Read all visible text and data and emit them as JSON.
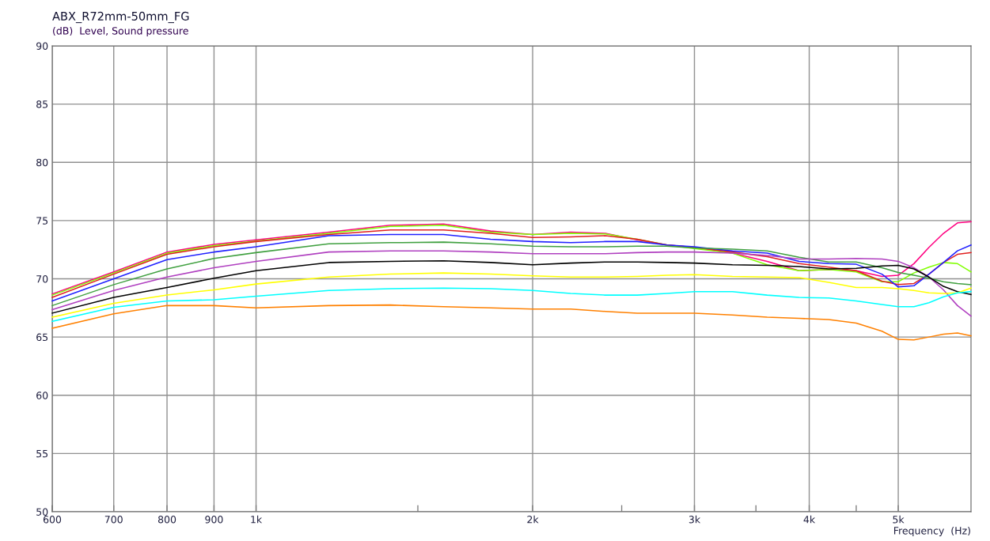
{
  "chart_data": {
    "type": "line",
    "title": "ABX_R72mm-50mm_FG",
    "ylabel": "(dB)  Level, Sound pressure",
    "xlabel": "Frequency  (Hz)",
    "log": "x",
    "grid": true,
    "marker": "none",
    "line_style": "solid",
    "xlim": [
      600,
      6000
    ],
    "ylim": [
      50,
      90
    ],
    "xticks": [
      600,
      700,
      800,
      900,
      {
        "value": 1000,
        "label": "1k"
      },
      {
        "value": 1500,
        "label": null
      },
      {
        "value": 2000,
        "label": "2k"
      },
      {
        "value": 2500,
        "label": null
      },
      {
        "value": 3000,
        "label": "3k"
      },
      {
        "value": 3500,
        "label": null
      },
      {
        "value": 4000,
        "label": "4k"
      },
      {
        "value": 4500,
        "label": null
      },
      {
        "value": 5000,
        "label": "5k"
      }
    ],
    "yticks": [
      50,
      55,
      60,
      65,
      70,
      75,
      80,
      85,
      90
    ],
    "x": [
      600,
      700,
      800,
      900,
      1000,
      1200,
      1400,
      1600,
      1800,
      2000,
      2200,
      2400,
      2600,
      2800,
      3000,
      3300,
      3600,
      3900,
      4200,
      4500,
      4800,
      5000,
      5200,
      5400,
      5600,
      5800,
      6000
    ],
    "series": [
      {
        "color": "#ff0080",
        "values": [
          68.7,
          70.6,
          72.3,
          72.95,
          73.35,
          74.0,
          74.6,
          74.7,
          74.1,
          73.8,
          74.0,
          73.9,
          73.35,
          72.9,
          72.7,
          72.2,
          71.5,
          70.7,
          70.8,
          70.7,
          70.2,
          70.3,
          71.3,
          72.7,
          73.9,
          74.8,
          74.9
        ]
      },
      {
        "color": "#80ff00",
        "values": [
          68.6,
          70.5,
          72.2,
          72.85,
          73.25,
          73.9,
          74.5,
          74.6,
          74.0,
          73.8,
          73.9,
          73.85,
          73.4,
          72.9,
          72.6,
          72.2,
          71.2,
          70.7,
          70.8,
          70.6,
          69.75,
          69.75,
          70.5,
          71.0,
          71.4,
          71.3,
          70.6
        ]
      },
      {
        "color": "#e02020",
        "values": [
          68.4,
          70.4,
          72.1,
          72.75,
          73.2,
          73.8,
          74.2,
          74.2,
          73.9,
          73.55,
          73.6,
          73.7,
          73.4,
          72.9,
          72.7,
          72.3,
          71.9,
          71.3,
          71.0,
          70.7,
          69.8,
          69.5,
          69.6,
          70.4,
          71.4,
          72.1,
          72.25
        ]
      },
      {
        "color": "#2020ff",
        "values": [
          68.1,
          70.0,
          71.65,
          72.3,
          72.75,
          73.7,
          73.8,
          73.8,
          73.4,
          73.2,
          73.1,
          73.2,
          73.2,
          72.9,
          72.75,
          72.4,
          72.2,
          71.5,
          71.3,
          71.25,
          70.4,
          69.3,
          69.4,
          70.4,
          71.4,
          72.4,
          72.9
        ]
      },
      {
        "color": "#40a040",
        "values": [
          67.7,
          69.5,
          70.85,
          71.75,
          72.25,
          73.0,
          73.1,
          73.15,
          73.0,
          72.8,
          72.75,
          72.75,
          72.8,
          72.8,
          72.65,
          72.55,
          72.4,
          71.85,
          71.45,
          71.45,
          70.95,
          70.55,
          70.3,
          70.05,
          69.75,
          69.6,
          69.5
        ]
      },
      {
        "color": "#b040c0",
        "values": [
          67.35,
          69.0,
          70.15,
          70.95,
          71.5,
          72.3,
          72.4,
          72.4,
          72.3,
          72.15,
          72.15,
          72.15,
          72.25,
          72.3,
          72.3,
          72.2,
          72.0,
          71.7,
          71.7,
          71.75,
          71.7,
          71.5,
          70.95,
          70.15,
          69.05,
          67.7,
          66.8
        ]
      },
      {
        "color": "#000000",
        "values": [
          67.05,
          68.4,
          69.25,
          70.05,
          70.7,
          71.4,
          71.5,
          71.55,
          71.4,
          71.2,
          71.35,
          71.45,
          71.45,
          71.4,
          71.35,
          71.2,
          71.15,
          71.05,
          70.85,
          70.9,
          71.1,
          71.15,
          70.85,
          70.15,
          69.35,
          68.9,
          68.65
        ]
      },
      {
        "color": "#ffff00",
        "values": [
          66.7,
          67.9,
          68.6,
          69.05,
          69.55,
          70.15,
          70.4,
          70.5,
          70.4,
          70.25,
          70.15,
          70.15,
          70.2,
          70.3,
          70.35,
          70.2,
          70.15,
          70.1,
          69.7,
          69.25,
          69.25,
          69.15,
          69.0,
          68.8,
          68.75,
          68.8,
          69.2
        ]
      },
      {
        "color": "#00ffff",
        "values": [
          66.35,
          67.55,
          68.1,
          68.2,
          68.5,
          69.0,
          69.15,
          69.2,
          69.15,
          69.0,
          68.75,
          68.6,
          68.6,
          68.75,
          68.9,
          68.9,
          68.6,
          68.4,
          68.35,
          68.1,
          67.8,
          67.6,
          67.6,
          67.95,
          68.45,
          68.8,
          68.9
        ]
      },
      {
        "color": "#ff8000",
        "values": [
          65.75,
          67.0,
          67.7,
          67.7,
          67.5,
          67.7,
          67.75,
          67.6,
          67.5,
          67.4,
          67.4,
          67.2,
          67.05,
          67.05,
          67.05,
          66.9,
          66.7,
          66.6,
          66.5,
          66.2,
          65.5,
          64.8,
          64.75,
          65.0,
          65.25,
          65.35,
          65.1
        ]
      }
    ]
  }
}
